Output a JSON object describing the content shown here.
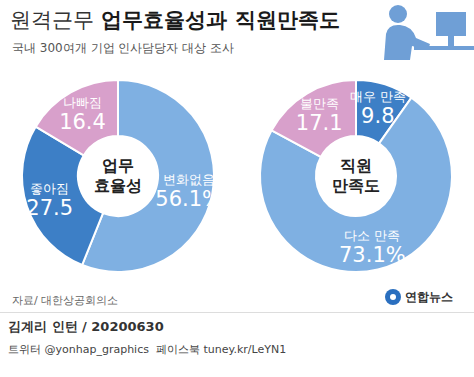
{
  "title": "원격근무 업무효율성과 직원만족도",
  "subtitle": "국내 300여개 기업 인사담당자 대상 조사",
  "chart_data": [
    {
      "type": "pie",
      "title": "업무 효율성",
      "categories": [
        "변화없음",
        "좋아짐",
        "나빠짐"
      ],
      "values": [
        56.1,
        27.5,
        16.4
      ],
      "value_labels": [
        "56.1%",
        "27.5",
        "16.4"
      ],
      "colors": [
        "#7fb0e2",
        "#3d7fc6",
        "#d8a0cb"
      ],
      "data_labels": true
    },
    {
      "type": "pie",
      "title": "직원 만족도",
      "categories": [
        "매우 만족",
        "다소 만족",
        "불만족"
      ],
      "values": [
        9.8,
        73.1,
        17.1
      ],
      "value_labels": [
        "9.8",
        "73.1%",
        "17.1"
      ],
      "colors": [
        "#3d7fc6",
        "#7fb0e2",
        "#d8a0cb"
      ],
      "data_labels": true
    }
  ],
  "source": "자료/ 대한상공회의소",
  "credit": "김계리 인턴 / 20200630",
  "social": "트위터 @yonhap_graphics  페이스북 tuney.kr/LeYN1",
  "logo": "연합뉴스"
}
